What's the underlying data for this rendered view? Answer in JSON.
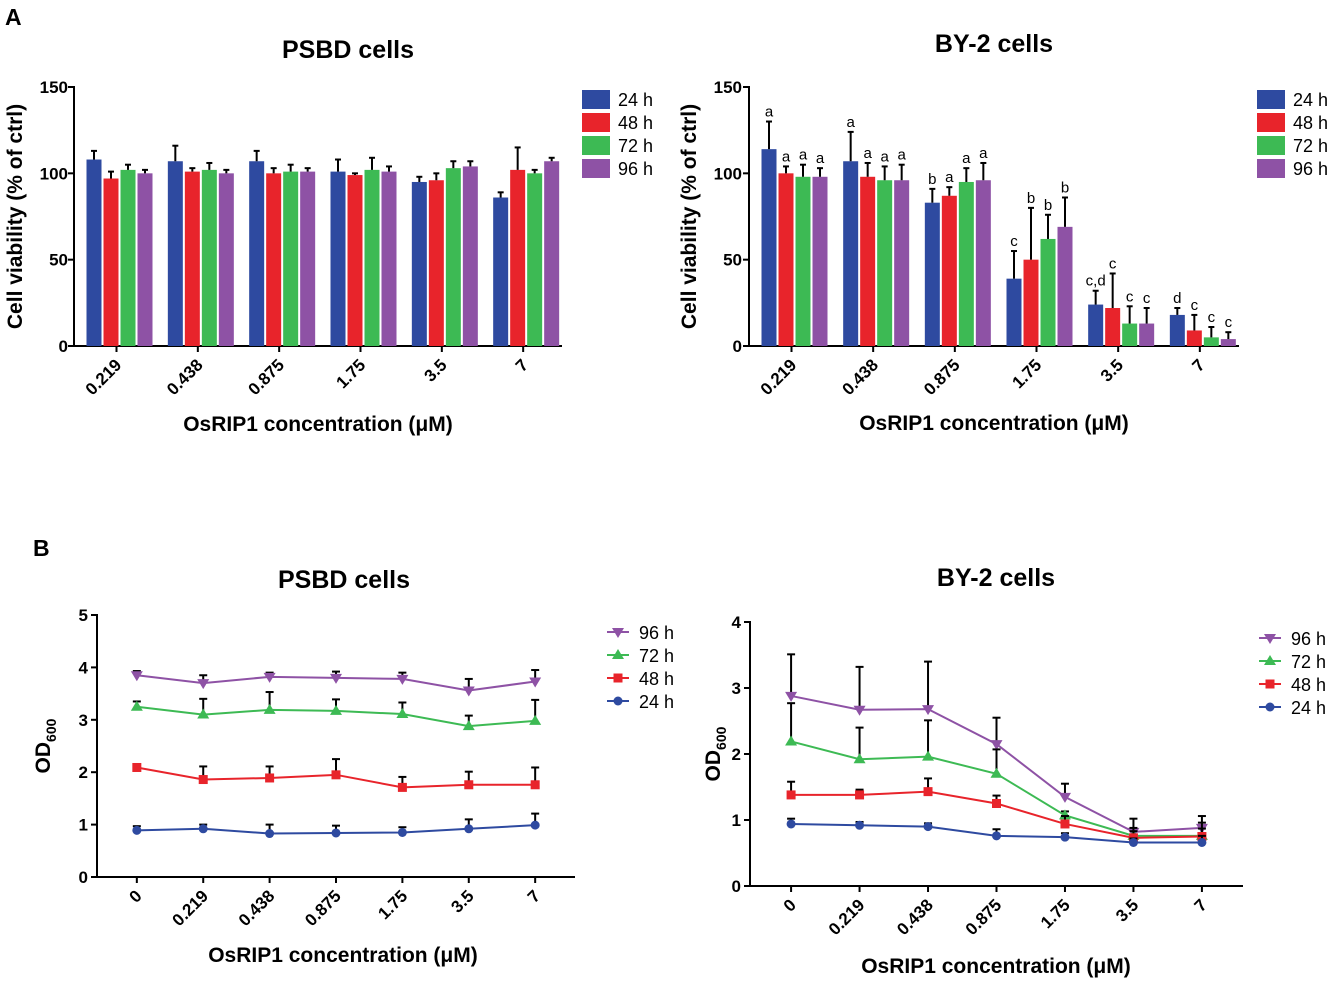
{
  "panels": {
    "A": "A",
    "B": "B"
  },
  "colors": {
    "24 h": "#2e4aa0",
    "48 h": "#e8242b",
    "72 h": "#3dba54",
    "96 h": "#8e52a5"
  },
  "chart_data": [
    {
      "id": "a1",
      "type": "bar",
      "title": "PSBD cells",
      "xlabel": "OsRIP1 concentration (μM)",
      "ylabel": "Cell viability (% of ctrl)",
      "ylim": [
        0,
        150
      ],
      "yticks": [
        0,
        50,
        100,
        150
      ],
      "categories": [
        "0.219",
        "0.438",
        "0.875",
        "1.75",
        "3.5",
        "7"
      ],
      "legend_order": [
        "24 h",
        "48 h",
        "72 h",
        "96 h"
      ],
      "series": [
        {
          "name": "24 h",
          "values": [
            108,
            107,
            107,
            101,
            95,
            86
          ],
          "errors": [
            5,
            9,
            6,
            7,
            3,
            3
          ]
        },
        {
          "name": "48 h",
          "values": [
            97,
            101,
            100,
            99,
            96,
            102
          ],
          "errors": [
            4,
            2,
            3,
            1,
            4,
            13
          ]
        },
        {
          "name": "72 h",
          "values": [
            102,
            102,
            101,
            102,
            103,
            100
          ],
          "errors": [
            3,
            4,
            4,
            7,
            4,
            2
          ]
        },
        {
          "name": "96 h",
          "values": [
            100,
            100,
            101,
            101,
            104,
            107
          ],
          "errors": [
            2,
            2,
            2,
            3,
            3,
            2
          ]
        }
      ]
    },
    {
      "id": "a2",
      "type": "bar",
      "title": "BY-2 cells",
      "xlabel": "OsRIP1 concentration (μM)",
      "ylabel": "Cell viability (% of ctrl)",
      "ylim": [
        0,
        150
      ],
      "yticks": [
        0,
        50,
        100,
        150
      ],
      "categories": [
        "0.219",
        "0.438",
        "0.875",
        "1.75",
        "3.5",
        "7"
      ],
      "legend_order": [
        "24 h",
        "48 h",
        "72 h",
        "96 h"
      ],
      "series": [
        {
          "name": "24 h",
          "values": [
            114,
            107,
            83,
            39,
            24,
            18
          ],
          "errors": [
            16,
            17,
            8,
            16,
            8,
            4
          ],
          "labels": [
            "a",
            "a",
            "b",
            "c",
            "c,d",
            "d"
          ]
        },
        {
          "name": "48 h",
          "values": [
            100,
            98,
            87,
            50,
            22,
            9
          ],
          "errors": [
            4,
            8,
            5,
            30,
            20,
            9
          ],
          "labels": [
            "a",
            "a",
            "a",
            "b",
            "c",
            "c"
          ]
        },
        {
          "name": "72 h",
          "values": [
            98,
            96,
            95,
            62,
            13,
            5
          ],
          "errors": [
            7,
            8,
            8,
            14,
            10,
            6
          ],
          "labels": [
            "a",
            "a",
            "a",
            "b",
            "c",
            "c"
          ]
        },
        {
          "name": "96 h",
          "values": [
            98,
            96,
            96,
            69,
            13,
            4
          ],
          "errors": [
            5,
            9,
            10,
            17,
            9,
            4
          ],
          "labels": [
            "a",
            "a",
            "a",
            "b",
            "c",
            "c"
          ]
        }
      ]
    },
    {
      "id": "b1",
      "type": "line",
      "title": "PSBD cells",
      "xlabel": "OsRIP1 concentration (μM)",
      "ylabel": "OD",
      "ylabel_sub": "600",
      "ylim": [
        0,
        5
      ],
      "yticks": [
        0,
        1,
        2,
        3,
        4,
        5
      ],
      "categories": [
        "0",
        "0.219",
        "0.438",
        "0.875",
        "1.75",
        "3.5",
        "7"
      ],
      "legend_order": [
        "96 h",
        "72 h",
        "48 h",
        "24 h"
      ],
      "series": [
        {
          "name": "96 h",
          "marker": "tri-down",
          "values": [
            3.85,
            3.7,
            3.82,
            3.8,
            3.78,
            3.56,
            3.73
          ],
          "errors": [
            0.08,
            0.15,
            0.08,
            0.12,
            0.12,
            0.22,
            0.22
          ]
        },
        {
          "name": "72 h",
          "marker": "tri-up",
          "values": [
            3.25,
            3.1,
            3.19,
            3.17,
            3.11,
            2.88,
            2.98
          ],
          "errors": [
            0.1,
            0.3,
            0.34,
            0.22,
            0.22,
            0.2,
            0.4
          ]
        },
        {
          "name": "48 h",
          "marker": "square",
          "values": [
            2.09,
            1.86,
            1.89,
            1.95,
            1.71,
            1.76,
            1.76
          ],
          "errors": [
            0.06,
            0.25,
            0.22,
            0.3,
            0.2,
            0.25,
            0.33
          ]
        },
        {
          "name": "24 h",
          "marker": "circle",
          "values": [
            0.89,
            0.92,
            0.83,
            0.84,
            0.85,
            0.92,
            0.99
          ],
          "errors": [
            0.08,
            0.08,
            0.17,
            0.14,
            0.1,
            0.18,
            0.22
          ]
        }
      ]
    },
    {
      "id": "b2",
      "type": "line",
      "title": "BY-2 cells",
      "xlabel": "OsRIP1 concentration (μM)",
      "ylabel": "OD",
      "ylabel_sub": "600",
      "ylim": [
        0,
        4
      ],
      "yticks": [
        0,
        1,
        2,
        3,
        4
      ],
      "categories": [
        "0",
        "0.219",
        "0.438",
        "0.875",
        "1.75",
        "3.5",
        "7"
      ],
      "legend_order": [
        "96 h",
        "72 h",
        "48 h",
        "24 h"
      ],
      "series": [
        {
          "name": "96 h",
          "marker": "tri-down",
          "values": [
            2.88,
            2.67,
            2.68,
            2.15,
            1.35,
            0.82,
            0.88
          ],
          "errors": [
            0.63,
            0.65,
            0.72,
            0.4,
            0.2,
            0.2,
            0.18
          ]
        },
        {
          "name": "72 h",
          "marker": "tri-up",
          "values": [
            2.19,
            1.92,
            1.96,
            1.7,
            1.07,
            0.76,
            0.76
          ],
          "errors": [
            0.58,
            0.48,
            0.55,
            0.37,
            0.06,
            0.12,
            0.2
          ]
        },
        {
          "name": "48 h",
          "marker": "square",
          "values": [
            1.38,
            1.38,
            1.43,
            1.25,
            0.94,
            0.73,
            0.75
          ],
          "errors": [
            0.2,
            0.08,
            0.2,
            0.12,
            0.12,
            0.1,
            0.12
          ]
        },
        {
          "name": "24 h",
          "marker": "circle",
          "values": [
            0.94,
            0.92,
            0.9,
            0.76,
            0.74,
            0.66,
            0.66
          ],
          "errors": [
            0.08,
            0.05,
            0.05,
            0.1,
            0.06,
            0.06,
            0.1
          ]
        }
      ]
    }
  ]
}
